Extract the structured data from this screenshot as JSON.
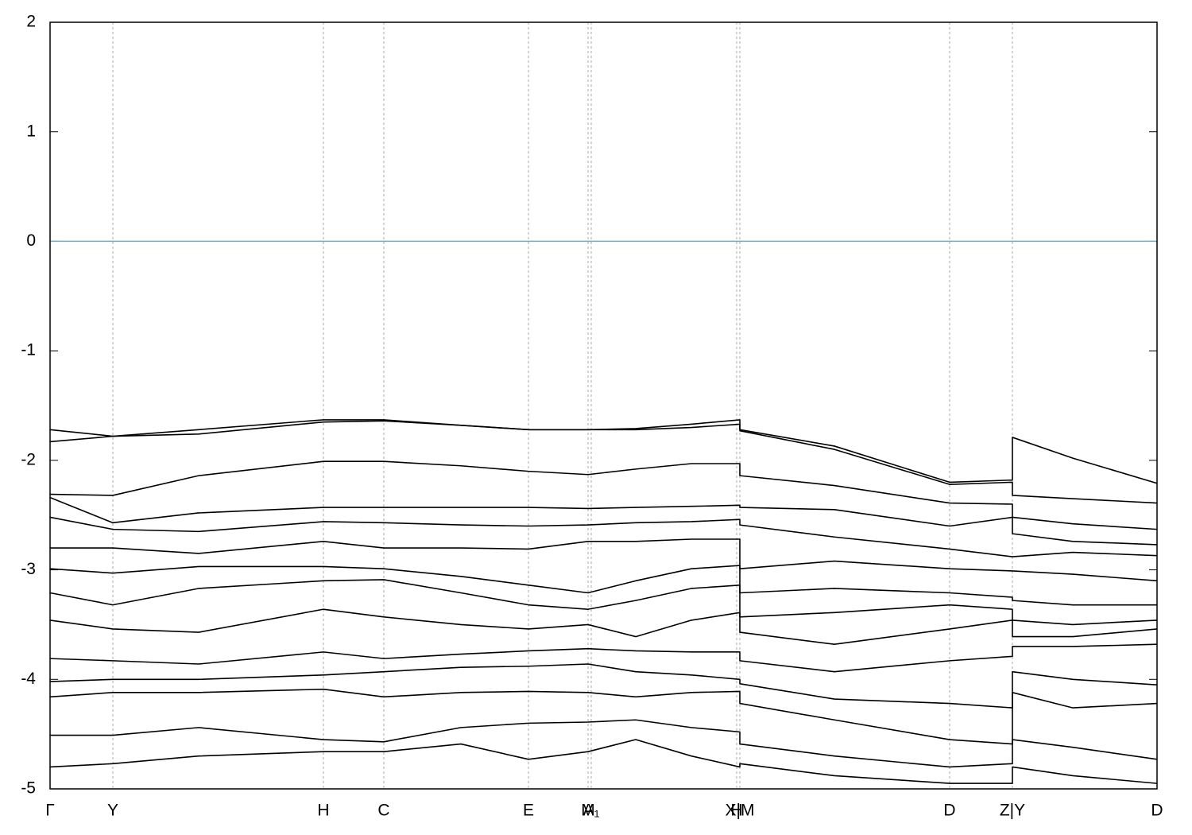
{
  "chart_data": {
    "type": "line",
    "x": [
      0,
      0.79,
      1.87,
      3.44,
      4.2,
      5.17,
      6.02,
      6.77,
      7.37,
      8.07,
      8.68,
      8.68,
      9.87,
      11.32,
      12.11,
      12.11,
      12.87,
      13.93
    ],
    "xlim": [
      0,
      13.93
    ],
    "xticks": [
      {
        "value": 0,
        "label": "Γ"
      },
      {
        "value": 0.79,
        "label": "Y"
      },
      {
        "value": 3.44,
        "label": "H"
      },
      {
        "value": 4.2,
        "label": "C"
      },
      {
        "value": 6.02,
        "label": "E"
      },
      {
        "value": 6.77,
        "label": "M"
      },
      {
        "value": 6.81,
        "label": "A₁"
      },
      {
        "value": 8.64,
        "label": "H"
      },
      {
        "value": 8.68,
        "label": "X|M"
      },
      {
        "value": 11.32,
        "label": "D"
      },
      {
        "value": 12.11,
        "label": "Z|Y"
      },
      {
        "value": 13.93,
        "label": "D"
      }
    ],
    "ylim": [
      -5,
      2
    ],
    "yticks": [
      -5,
      -4,
      -3,
      -2,
      -1,
      0,
      1,
      2
    ],
    "x_grid": true,
    "reference_line": 0,
    "reference_color": "#5fb4c8",
    "series": [
      {
        "color": "#000000",
        "values": [
          -1.72,
          -1.78,
          -1.72,
          -1.63,
          -1.63,
          -1.68,
          -1.72,
          -1.72,
          -1.71,
          -1.67,
          -1.63,
          -1.72,
          -1.87,
          -2.2,
          -2.18,
          -1.79,
          -1.98,
          -2.21
        ]
      },
      {
        "color": "#000000",
        "values": [
          -1.83,
          -1.78,
          -1.76,
          -1.65,
          -1.64,
          -1.68,
          -1.72,
          -1.72,
          -1.72,
          -1.7,
          -1.67,
          -1.73,
          -1.9,
          -2.22,
          -2.2,
          -2.32,
          -2.35,
          -2.39
        ]
      },
      {
        "color": "#000000",
        "values": [
          -2.31,
          -2.32,
          -2.14,
          -2.01,
          -2.01,
          -2.05,
          -2.1,
          -2.13,
          -2.08,
          -2.03,
          -2.03,
          -2.14,
          -2.23,
          -2.39,
          -2.4,
          -2.52,
          -2.58,
          -2.63
        ]
      },
      {
        "color": "#000000",
        "values": [
          -2.34,
          -2.57,
          -2.48,
          -2.43,
          -2.43,
          -2.43,
          -2.43,
          -2.44,
          -2.43,
          -2.42,
          -2.41,
          -2.43,
          -2.45,
          -2.6,
          -2.52,
          -2.67,
          -2.74,
          -2.77
        ]
      },
      {
        "color": "#000000",
        "values": [
          -2.52,
          -2.63,
          -2.65,
          -2.56,
          -2.57,
          -2.59,
          -2.6,
          -2.59,
          -2.57,
          -2.56,
          -2.54,
          -2.59,
          -2.7,
          -2.81,
          -2.88,
          -2.88,
          -2.84,
          -2.87
        ]
      },
      {
        "color": "#000000",
        "values": [
          -2.8,
          -2.8,
          -2.85,
          -2.74,
          -2.8,
          -2.8,
          -2.81,
          -2.74,
          -2.74,
          -2.72,
          -2.72,
          -2.99,
          -2.92,
          -2.99,
          -3.01,
          -3.01,
          -3.04,
          -3.1
        ]
      },
      {
        "color": "#000000",
        "values": [
          -2.99,
          -3.03,
          -2.97,
          -2.97,
          -2.99,
          -3.06,
          -3.14,
          -3.21,
          -3.1,
          -2.99,
          -2.96,
          -3.21,
          -3.17,
          -3.21,
          -3.25,
          -3.28,
          -3.32,
          -3.32
        ]
      },
      {
        "color": "#000000",
        "values": [
          -3.21,
          -3.32,
          -3.17,
          -3.1,
          -3.09,
          -3.21,
          -3.32,
          -3.36,
          -3.28,
          -3.17,
          -3.14,
          -3.43,
          -3.39,
          -3.32,
          -3.36,
          -3.46,
          -3.5,
          -3.46
        ]
      },
      {
        "color": "#000000",
        "values": [
          -3.46,
          -3.54,
          -3.57,
          -3.36,
          -3.43,
          -3.5,
          -3.54,
          -3.5,
          -3.61,
          -3.46,
          -3.39,
          -3.57,
          -3.68,
          -3.54,
          -3.46,
          -3.61,
          -3.61,
          -3.54
        ]
      },
      {
        "color": "#000000",
        "values": [
          -3.81,
          -3.83,
          -3.86,
          -3.75,
          -3.81,
          -3.77,
          -3.74,
          -3.72,
          -3.74,
          -3.75,
          -3.75,
          -3.83,
          -3.93,
          -3.83,
          -3.79,
          -3.7,
          -3.7,
          -3.68
        ]
      },
      {
        "color": "#000000",
        "values": [
          -4.02,
          -4.0,
          -4.0,
          -3.96,
          -3.93,
          -3.89,
          -3.88,
          -3.86,
          -3.93,
          -3.96,
          -4.0,
          -4.04,
          -4.18,
          -4.22,
          -4.26,
          -3.93,
          -4.0,
          -4.05
        ]
      },
      {
        "color": "#000000",
        "values": [
          -4.16,
          -4.12,
          -4.12,
          -4.09,
          -4.16,
          -4.12,
          -4.11,
          -4.12,
          -4.16,
          -4.12,
          -4.11,
          -4.22,
          -4.37,
          -4.55,
          -4.59,
          -4.12,
          -4.26,
          -4.22
        ]
      },
      {
        "color": "#000000",
        "values": [
          -4.51,
          -4.51,
          -4.44,
          -4.55,
          -4.57,
          -4.44,
          -4.4,
          -4.39,
          -4.37,
          -4.44,
          -4.48,
          -4.59,
          -4.7,
          -4.8,
          -4.77,
          -4.55,
          -4.62,
          -4.73
        ]
      },
      {
        "color": "#000000",
        "values": [
          -4.8,
          -4.77,
          -4.7,
          -4.66,
          -4.66,
          -4.59,
          -4.73,
          -4.66,
          -4.55,
          -4.7,
          -4.8,
          -4.77,
          -4.88,
          -4.95,
          -4.95,
          -4.8,
          -4.88,
          -4.95
        ]
      }
    ]
  }
}
